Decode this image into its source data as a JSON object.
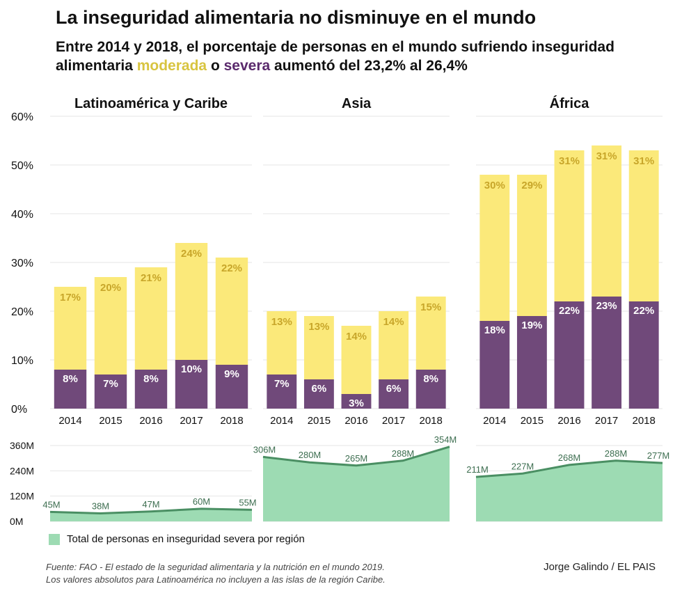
{
  "header": {
    "title": "La inseguridad alimentaria no disminuye en el mundo",
    "subtitle_part1": "Entre 2014 y 2018, el porcentaje de personas en el mundo sufriendo inseguridad alimentaria ",
    "subtitle_moderate": "moderada",
    "subtitle_part2": " o ",
    "subtitle_severe": "severa",
    "subtitle_part3": " aumentó del 23,2% al 26,4%"
  },
  "colors": {
    "moderate": "#fbe97a",
    "moderate_label": "#c8a62a",
    "severe": "#70497a",
    "severe_label": "#ffffff",
    "area_fill": "#9ddbb3",
    "area_line": "#4a8f63",
    "area_label": "#3d6e50"
  },
  "chart_data": [
    {
      "type": "bar",
      "stacked": true,
      "title": "Latinoamérica y Caribe",
      "categories": [
        "2014",
        "2015",
        "2016",
        "2017",
        "2018"
      ],
      "series": [
        {
          "name": "severa",
          "values": [
            8,
            7,
            8,
            10,
            9
          ],
          "labels": [
            "8%",
            "7%",
            "8%",
            "10%",
            "9%"
          ]
        },
        {
          "name": "moderada",
          "values": [
            17,
            20,
            21,
            24,
            22
          ],
          "labels": [
            "17%",
            "20%",
            "21%",
            "24%",
            "22%"
          ]
        }
      ],
      "ylim": [
        0,
        60
      ]
    },
    {
      "type": "bar",
      "stacked": true,
      "title": "Asia",
      "categories": [
        "2014",
        "2015",
        "2016",
        "2017",
        "2018"
      ],
      "series": [
        {
          "name": "severa",
          "values": [
            7,
            6,
            3,
            6,
            8
          ],
          "labels": [
            "7%",
            "6%",
            "3%",
            "6%",
            "8%"
          ]
        },
        {
          "name": "moderada",
          "values": [
            13,
            13,
            14,
            14,
            15
          ],
          "labels": [
            "13%",
            "13%",
            "14%",
            "14%",
            "15%"
          ]
        }
      ],
      "ylim": [
        0,
        60
      ]
    },
    {
      "type": "bar",
      "stacked": true,
      "title": "África",
      "categories": [
        "2014",
        "2015",
        "2016",
        "2017",
        "2018"
      ],
      "series": [
        {
          "name": "severa",
          "values": [
            18,
            19,
            22,
            23,
            22
          ],
          "labels": [
            "18%",
            "19%",
            "22%",
            "23%",
            "22%"
          ]
        },
        {
          "name": "moderada",
          "values": [
            30,
            29,
            31,
            31,
            31
          ],
          "labels": [
            "30%",
            "29%",
            "31%",
            "31%",
            "31%"
          ]
        }
      ],
      "ylim": [
        0,
        60
      ]
    },
    {
      "type": "area",
      "title": "Total de personas en inseguridad severa por región — Latinoamérica",
      "x": [
        "2014",
        "2015",
        "2016",
        "2017",
        "2018"
      ],
      "values": [
        45,
        38,
        47,
        60,
        55
      ],
      "labels": [
        "45M",
        "38M",
        "47M",
        "60M",
        "55M"
      ],
      "ylim": [
        0,
        360
      ]
    },
    {
      "type": "area",
      "title": "Total de personas en inseguridad severa por región — Asia",
      "x": [
        "2014",
        "2015",
        "2016",
        "2017",
        "2018"
      ],
      "values": [
        306,
        280,
        265,
        288,
        354
      ],
      "labels": [
        "306M",
        "280M",
        "265M",
        "288M",
        "354M"
      ],
      "ylim": [
        0,
        360
      ]
    },
    {
      "type": "area",
      "title": "Total de personas en inseguridad severa por región — África",
      "x": [
        "2014",
        "2015",
        "2016",
        "2017",
        "2018"
      ],
      "values": [
        211,
        227,
        268,
        288,
        277
      ],
      "labels": [
        "211M",
        "227M",
        "268M",
        "288M",
        "277M"
      ],
      "ylim": [
        0,
        360
      ]
    }
  ],
  "axes": {
    "bar_ticks": [
      {
        "value": 0,
        "label": "0%"
      },
      {
        "value": 10,
        "label": "10%"
      },
      {
        "value": 20,
        "label": "20%"
      },
      {
        "value": 30,
        "label": "30%"
      },
      {
        "value": 40,
        "label": "40%"
      },
      {
        "value": 50,
        "label": "50%"
      },
      {
        "value": 60,
        "label": "60%"
      }
    ],
    "area_ticks": [
      {
        "value": 0,
        "label": "0M"
      },
      {
        "value": 120,
        "label": "120M"
      },
      {
        "value": 240,
        "label": "240M"
      },
      {
        "value": 360,
        "label": "360M"
      }
    ]
  },
  "legend": {
    "label": "Total de personas en inseguridad severa por región"
  },
  "footer": {
    "source_line1": "Fuente: FAO - El estado de la seguridad alimentaria y la nutrición en el mundo 2019.",
    "source_line2": "Los valores absolutos para Latinoamérica no incluyen a las islas de la región Caribe.",
    "author": "Jorge Galindo / EL PAIS"
  }
}
